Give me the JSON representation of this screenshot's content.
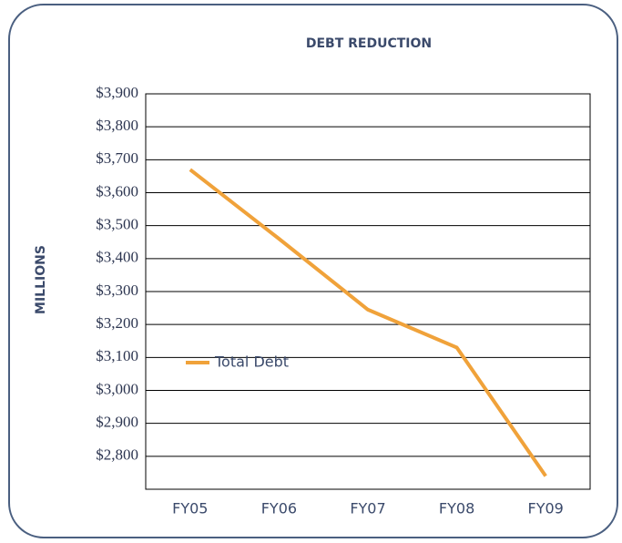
{
  "chart_data": {
    "type": "line",
    "title": "DEBT REDUCTION",
    "y_label": "MILLIONS",
    "categories": [
      "FY05",
      "FY06",
      "FY07",
      "FY08",
      "FY09"
    ],
    "series": [
      {
        "name": "Total Debt",
        "color": "#f0a23a",
        "values": [
          3670,
          3460,
          3245,
          3130,
          2740
        ]
      }
    ],
    "ylim": [
      2700,
      3900
    ],
    "yticks": [
      {
        "value": 2800,
        "label": "$2,800"
      },
      {
        "value": 2900,
        "label": "$2,900"
      },
      {
        "value": 3000,
        "label": "$3,000"
      },
      {
        "value": 3100,
        "label": "$3,100"
      },
      {
        "value": 3200,
        "label": "$3,200"
      },
      {
        "value": 3300,
        "label": "$3,300"
      },
      {
        "value": 3400,
        "label": "$3,400"
      },
      {
        "value": 3500,
        "label": "$3,500"
      },
      {
        "value": 3600,
        "label": "$3,600"
      },
      {
        "value": 3700,
        "label": "$3,700"
      },
      {
        "value": 3800,
        "label": "$3,800"
      },
      {
        "value": 3900,
        "label": "$3,900"
      }
    ],
    "grid": true,
    "legend": "left"
  }
}
